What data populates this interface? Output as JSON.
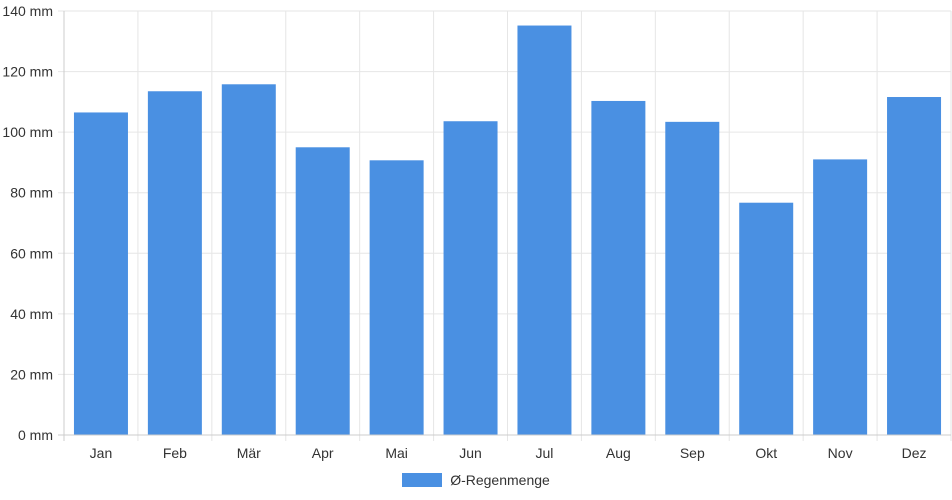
{
  "chart_data": {
    "type": "bar",
    "categories": [
      "Jan",
      "Feb",
      "Mär",
      "Apr",
      "Mai",
      "Jun",
      "Jul",
      "Aug",
      "Sep",
      "Okt",
      "Nov",
      "Dez"
    ],
    "series": [
      {
        "name": "Ø-Regenmenge",
        "values": [
          106.5,
          113.5,
          115.8,
          95.0,
          90.7,
          103.6,
          135.2,
          110.3,
          103.4,
          76.7,
          91.0,
          111.6
        ]
      }
    ],
    "y_ticks": [
      "0 mm",
      "20 mm",
      "40 mm",
      "60 mm",
      "80 mm",
      "100 mm",
      "120 mm",
      "140 mm"
    ],
    "ylim": [
      0,
      140
    ],
    "grid": true,
    "legend_position": "bottom",
    "colors": {
      "bar": "#4a90e2",
      "grid": "#e6e6e6",
      "axis": "#cccccc"
    }
  }
}
